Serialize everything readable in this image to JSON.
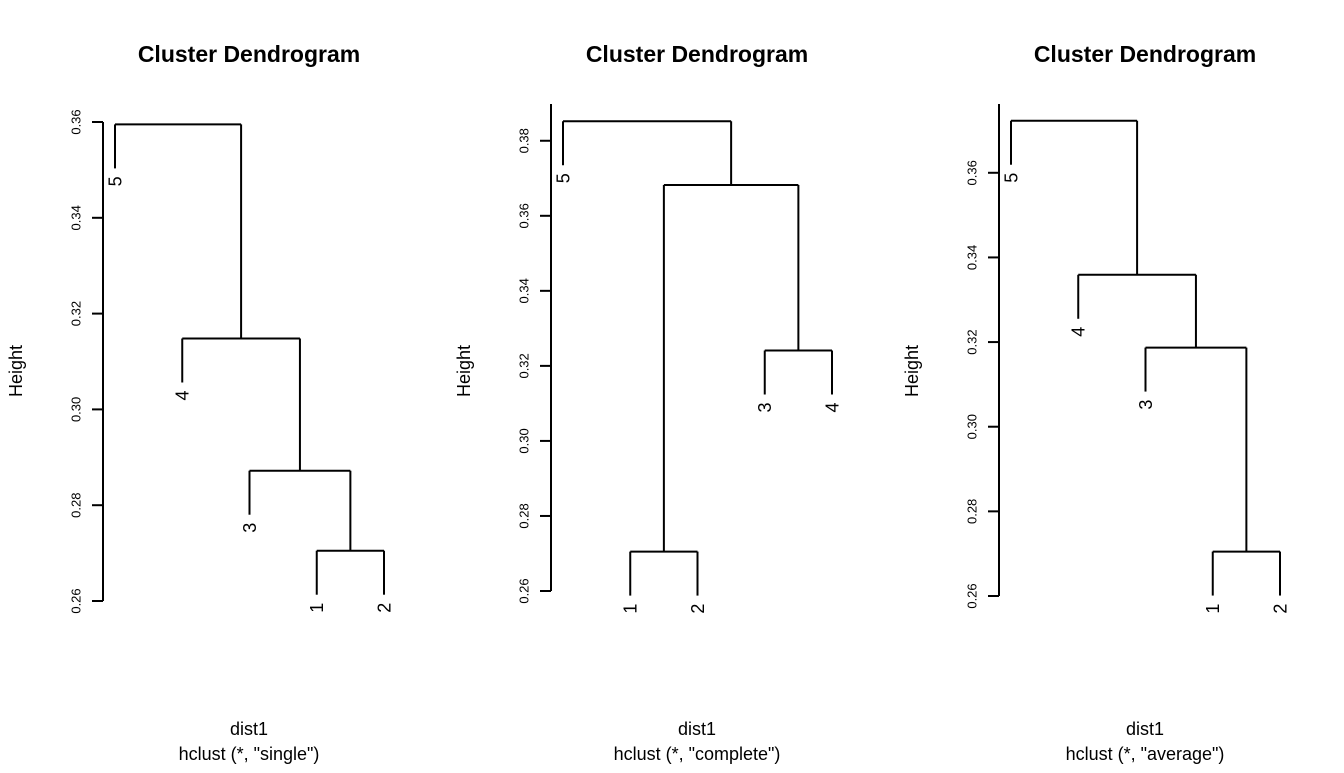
{
  "chart_data": [
    {
      "type": "dendrogram",
      "title": "Cluster Dendrogram",
      "ylabel": "Height",
      "xlabel": "dist1",
      "sublabel": "hclust (*, \"single\")",
      "ylim": [
        0.26,
        0.36
      ],
      "yticks": [
        0.26,
        0.28,
        0.3,
        0.32,
        0.34,
        0.36
      ],
      "tick_labels": [
        "0.26",
        "0.28",
        "0.30",
        "0.32",
        "0.34",
        "0.36"
      ],
      "order": [
        "5",
        "4",
        "3",
        "1",
        "2"
      ],
      "merges": [
        {
          "left": "1",
          "right": "2",
          "height": 0.2705
        },
        {
          "left": "3",
          "right": "1+2",
          "height": 0.2872
        },
        {
          "left": "4",
          "right": "3+1+2",
          "height": 0.3148
        },
        {
          "left": "5",
          "right": "4+3+1+2",
          "height": 0.3595
        }
      ]
    },
    {
      "type": "dendrogram",
      "title": "Cluster Dendrogram",
      "ylabel": "Height",
      "xlabel": "dist1",
      "sublabel": "hclust (*, \"complete\")",
      "ylim": [
        0.26,
        0.385
      ],
      "yticks": [
        0.26,
        0.28,
        0.3,
        0.32,
        0.34,
        0.36,
        0.38
      ],
      "tick_labels": [
        "0.26",
        "0.28",
        "0.30",
        "0.32",
        "0.34",
        "0.36",
        "0.38"
      ],
      "order": [
        "5",
        "1",
        "2",
        "3",
        "4"
      ],
      "merges": [
        {
          "left": "1",
          "right": "2",
          "height": 0.2705
        },
        {
          "left": "3",
          "right": "4",
          "height": 0.3241
        },
        {
          "left": "1+2",
          "right": "3+4",
          "height": 0.3682
        },
        {
          "left": "5",
          "right": "1+2+3+4",
          "height": 0.3852
        }
      ]
    },
    {
      "type": "dendrogram",
      "title": "Cluster Dendrogram",
      "ylabel": "Height",
      "xlabel": "dist1",
      "sublabel": "hclust (*, \"average\")",
      "ylim": [
        0.26,
        0.372
      ],
      "yticks": [
        0.26,
        0.28,
        0.3,
        0.32,
        0.34,
        0.36
      ],
      "tick_labels": [
        "0.26",
        "0.28",
        "0.30",
        "0.32",
        "0.34",
        "0.36"
      ],
      "order": [
        "5",
        "4",
        "3",
        "1",
        "2"
      ],
      "merges": [
        {
          "left": "1",
          "right": "2",
          "height": 0.2705
        },
        {
          "left": "3",
          "right": "1+2",
          "height": 0.3187
        },
        {
          "left": "4",
          "right": "3+1+2",
          "height": 0.3359
        },
        {
          "left": "5",
          "right": "4+3+1+2",
          "height": 0.3723
        }
      ]
    }
  ]
}
